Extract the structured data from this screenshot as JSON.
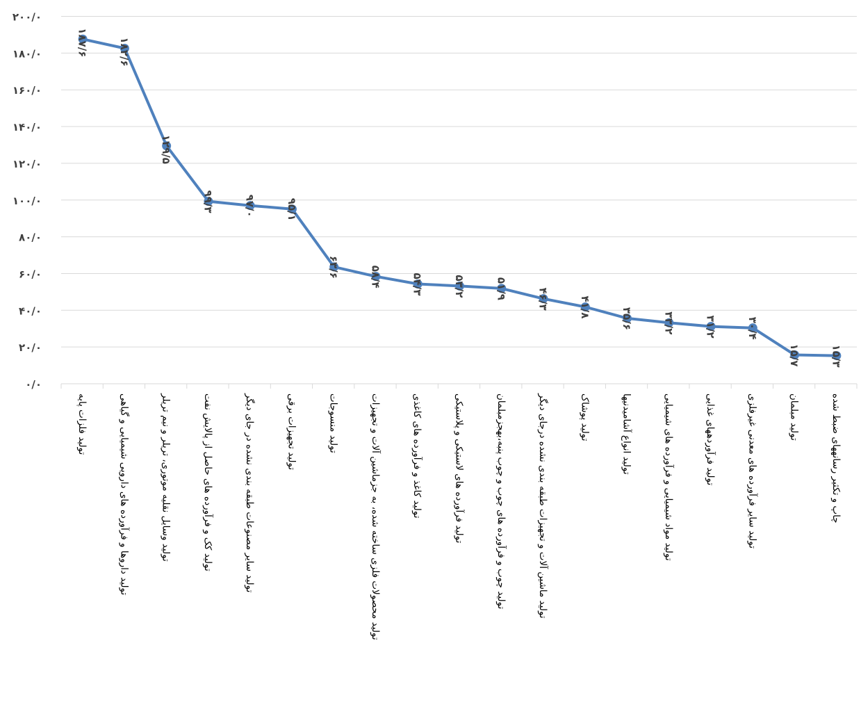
{
  "chart_data": {
    "type": "line",
    "title": "",
    "xlabel": "",
    "ylabel": "",
    "ylim": [
      0,
      200
    ],
    "grid": true,
    "y_tick_labels": [
      "۰/۰",
      "۲۰/۰",
      "۴۰/۰",
      "۶۰/۰",
      "۸۰/۰",
      "۱۰۰/۰",
      "۱۲۰/۰",
      "۱۴۰/۰",
      "۱۶۰/۰",
      "۱۸۰/۰",
      "۲۰۰/۰"
    ],
    "y_tick_values": [
      0,
      20,
      40,
      60,
      80,
      100,
      120,
      140,
      160,
      180,
      200
    ],
    "line_color": "#4F81BD",
    "grid_color": "#D9D9D9",
    "categories": [
      [
        "تولید فلزات پایه"
      ],
      [
        "تولید داروها و فرآورده های دارویی شیمیایی و گیاهی"
      ],
      [
        "تولید وسایل نقلیه موتوری، تریلر و نیم تریلر"
      ],
      [
        "تولید کک و فرآورده های حاصل از پالایش نفت"
      ],
      [
        "تولید سایر مصنوعات طبقه بندی نشده در جای دیگر"
      ],
      [
        "تولید تجهیزات برقی"
      ],
      [
        "تولید منسوجات"
      ],
      [
        "تولید محصولات فلزی ساخته شده، به جزماشین آلات و تجهیزات"
      ],
      [
        "تولید کاغذ و فرآورده های کاغذی"
      ],
      [
        "تولید فرآورده های لاستیکی و پلاستیکی"
      ],
      [
        "تولید چوب و فرآورده های چوب و چوب پنبه،بهجزمبلمان"
      ],
      [
        "تولید ماشین آلات و تجهیزات طبقه بندی نشده درجای دیگر"
      ],
      [
        "تولید پوشاک"
      ],
      [
        "تولید انواع آشامیدنیها"
      ],
      [
        "تولید مواد شیمیایی و فرآورده های شیمیایی"
      ],
      [
        "تولید فرآوردههای غذایی"
      ],
      [
        "تولید سایر فرآورده های معدنی غیرفلزی"
      ],
      [
        "تولید مبلمان"
      ],
      [
        "چاپ و تکثیر رسانههای ضبط شده"
      ]
    ],
    "values": [
      187.6,
      182.6,
      129.5,
      99.3,
      97.0,
      95.1,
      63.6,
      58.4,
      54.3,
      53.2,
      51.9,
      46.3,
      41.8,
      35.6,
      33.2,
      31.2,
      30.4,
      15.7,
      15.3
    ],
    "data_labels": [
      "۱۸۷/۶",
      "۱۸۲/۶",
      "۱۲۹/۵",
      "۹۹/۳",
      "۹۷/۰",
      "۹۵/۱",
      "۶۳/۶",
      "۵۸/۴",
      "۵۴/۳",
      "۵۳/۲",
      "۵۱/۹",
      "۴۶/۳",
      "۴۱/۸",
      "۳۵/۶",
      "۳۳/۲",
      "۳۱/۲",
      "۳۰/۴",
      "۱۵/۷",
      "۱۵/۳"
    ]
  }
}
